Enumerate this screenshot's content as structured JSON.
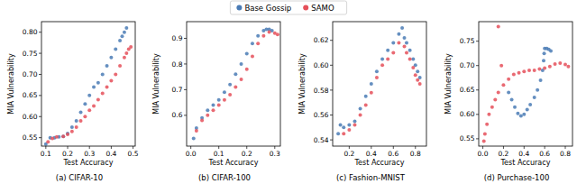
{
  "chart_data": [
    {
      "type": "scatter",
      "title": "(a) CIFAR-10",
      "x_label": "Test Accuracy",
      "y_label": "MIA Vulnerability",
      "xlim": [
        0.08,
        0.51
      ],
      "ylim": [
        0.53,
        0.825
      ],
      "xticks": [
        0.1,
        0.2,
        0.3,
        0.4,
        0.5
      ],
      "yticks": [
        0.55,
        {
          "value": 0.6,
          "label": "0.60"
        },
        0.65,
        {
          "value": 0.7,
          "label": "0.70"
        },
        0.75,
        {
          "value": 0.8,
          "label": "0.80"
        }
      ],
      "grid": false,
      "legend": "top",
      "series": [
        {
          "name": "Base Gossip",
          "color": "#4a7bb5",
          "marker": "circle",
          "x": [
            0.1,
            0.12,
            0.14,
            0.16,
            0.18,
            0.2,
            0.22,
            0.24,
            0.26,
            0.28,
            0.3,
            0.32,
            0.34,
            0.36,
            0.38,
            0.4,
            0.42,
            0.44,
            0.45,
            0.46,
            0.47
          ],
          "values": [
            0.535,
            0.55,
            0.55,
            0.552,
            0.553,
            0.56,
            0.575,
            0.59,
            0.61,
            0.63,
            0.65,
            0.67,
            0.68,
            0.7,
            0.72,
            0.74,
            0.76,
            0.78,
            0.79,
            0.8,
            0.81
          ]
        },
        {
          "name": "SAMO",
          "color": "#e5505a",
          "marker": "circle",
          "x": [
            0.11,
            0.13,
            0.15,
            0.18,
            0.2,
            0.22,
            0.24,
            0.26,
            0.28,
            0.3,
            0.32,
            0.34,
            0.36,
            0.38,
            0.4,
            0.42,
            0.44,
            0.46,
            0.47,
            0.48,
            0.49
          ],
          "values": [
            0.54,
            0.548,
            0.552,
            0.553,
            0.558,
            0.565,
            0.575,
            0.59,
            0.6,
            0.615,
            0.625,
            0.64,
            0.655,
            0.67,
            0.685,
            0.7,
            0.72,
            0.74,
            0.75,
            0.76,
            0.765
          ]
        }
      ]
    },
    {
      "type": "scatter",
      "title": "(b) CIFAR-100",
      "x_label": "Test Accuracy",
      "y_label": "MIA Vulnerability",
      "xlim": [
        -0.015,
        0.32
      ],
      "ylim": [
        0.48,
        0.965
      ],
      "xticks": [
        {
          "value": 0,
          "label": "0.0"
        },
        0.1,
        0.2,
        0.3
      ],
      "yticks": [
        0.6,
        0.7,
        0.8,
        0.9
      ],
      "grid": false,
      "series": [
        {
          "name": "Base Gossip",
          "color": "#4a7bb5",
          "marker": "circle",
          "x": [
            0.01,
            0.02,
            0.04,
            0.06,
            0.08,
            0.1,
            0.12,
            0.14,
            0.16,
            0.18,
            0.2,
            0.22,
            0.24,
            0.26,
            0.27,
            0.28,
            0.29
          ],
          "values": [
            0.51,
            0.55,
            0.59,
            0.62,
            0.64,
            0.66,
            0.69,
            0.72,
            0.76,
            0.8,
            0.84,
            0.88,
            0.91,
            0.93,
            0.935,
            0.935,
            0.93
          ]
        },
        {
          "name": "SAMO",
          "color": "#e5505a",
          "marker": "circle",
          "x": [
            0.02,
            0.04,
            0.06,
            0.08,
            0.1,
            0.12,
            0.14,
            0.16,
            0.18,
            0.2,
            0.22,
            0.24,
            0.26,
            0.28,
            0.3,
            0.31
          ],
          "values": [
            0.54,
            0.58,
            0.6,
            0.62,
            0.64,
            0.66,
            0.68,
            0.71,
            0.74,
            0.78,
            0.83,
            0.88,
            0.91,
            0.925,
            0.92,
            0.915
          ]
        }
      ]
    },
    {
      "type": "scatter",
      "title": "(c) Fashion-MNIST",
      "x_label": "Test Accuracy",
      "y_label": "MIA Vulnerability",
      "xlim": [
        0.05,
        0.9
      ],
      "ylim": [
        0.535,
        0.635
      ],
      "xticks": [
        0.2,
        0.4,
        0.6,
        0.8
      ],
      "yticks": [
        0.54,
        0.56,
        0.58,
        {
          "value": 0.6,
          "label": "0.60"
        },
        0.62
      ],
      "grid": false,
      "series": [
        {
          "name": "Base Gossip",
          "color": "#4a7bb5",
          "marker": "circle",
          "x": [
            0.1,
            0.12,
            0.15,
            0.2,
            0.25,
            0.3,
            0.35,
            0.4,
            0.45,
            0.5,
            0.55,
            0.6,
            0.65,
            0.68,
            0.7,
            0.72,
            0.75,
            0.78,
            0.8,
            0.82,
            0.84
          ],
          "values": [
            0.545,
            0.552,
            0.55,
            0.552,
            0.555,
            0.565,
            0.575,
            0.585,
            0.595,
            0.605,
            0.612,
            0.618,
            0.625,
            0.63,
            0.622,
            0.618,
            0.612,
            0.605,
            0.6,
            0.595,
            0.59
          ]
        },
        {
          "name": "SAMO",
          "color": "#e5505a",
          "marker": "circle",
          "x": [
            0.15,
            0.2,
            0.25,
            0.3,
            0.35,
            0.4,
            0.45,
            0.5,
            0.55,
            0.6,
            0.65,
            0.7,
            0.72,
            0.75,
            0.78,
            0.8,
            0.82,
            0.84
          ],
          "values": [
            0.545,
            0.548,
            0.552,
            0.56,
            0.568,
            0.578,
            0.59,
            0.6,
            0.605,
            0.61,
            0.618,
            0.615,
            0.61,
            0.605,
            0.598,
            0.592,
            0.588,
            0.585
          ]
        }
      ]
    },
    {
      "type": "scatter",
      "title": "(d) Purchase-100",
      "x_label": "Test Accuracy",
      "y_label": "MIA Vulnerability",
      "xlim": [
        -0.04,
        0.87
      ],
      "ylim": [
        0.535,
        0.79
      ],
      "xticks": [
        {
          "value": 0,
          "label": "0.0"
        },
        0.2,
        0.4,
        0.6,
        0.8
      ],
      "yticks": [
        0.55,
        {
          "value": 0.6,
          "label": "0.60"
        },
        0.65,
        {
          "value": 0.7,
          "label": "0.70"
        },
        0.75
      ],
      "grid": false,
      "series": [
        {
          "name": "Base Gossip",
          "color": "#4a7bb5",
          "marker": "circle",
          "x": [
            0.25,
            0.28,
            0.31,
            0.34,
            0.37,
            0.4,
            0.43,
            0.46,
            0.5,
            0.53,
            0.56,
            0.58,
            0.59,
            0.595,
            0.6,
            0.62,
            0.64,
            0.66
          ],
          "values": [
            0.645,
            0.63,
            0.615,
            0.602,
            0.597,
            0.6,
            0.61,
            0.62,
            0.635,
            0.65,
            0.67,
            0.69,
            0.71,
            0.725,
            0.735,
            0.735,
            0.733,
            0.73
          ]
        },
        {
          "name": "SAMO",
          "color": "#e5505a",
          "marker": "circle",
          "x": [
            0.01,
            0.02,
            0.04,
            0.06,
            0.09,
            0.12,
            0.15,
            0.15,
            0.18,
            0.2,
            0.25,
            0.3,
            0.35,
            0.4,
            0.45,
            0.5,
            0.55,
            0.6,
            0.65,
            0.7,
            0.75,
            0.8,
            0.83
          ],
          "values": [
            0.545,
            0.56,
            0.58,
            0.6,
            0.615,
            0.63,
            0.78,
            0.645,
            0.7,
            0.66,
            0.672,
            0.682,
            0.685,
            0.688,
            0.69,
            0.69,
            0.693,
            0.695,
            0.698,
            0.703,
            0.705,
            0.702,
            0.698
          ]
        }
      ]
    }
  ]
}
